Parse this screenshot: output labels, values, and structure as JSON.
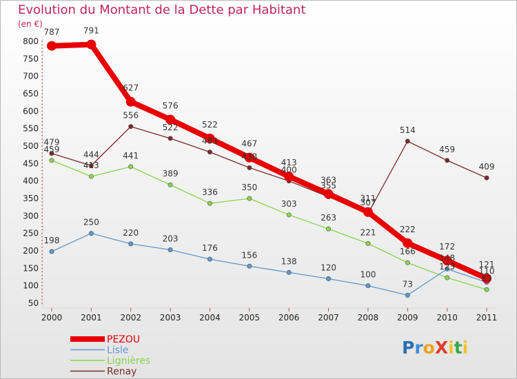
{
  "header": {
    "title": "Evolution du Montant de la Dette par Habitant",
    "unit": "(en €)"
  },
  "logo": {
    "text": "ProXiti",
    "letters": [
      {
        "ch": "P",
        "color": "#2a6fb5"
      },
      {
        "ch": "r",
        "color": "#3a8bd8"
      },
      {
        "ch": "o",
        "color": "#f0a020"
      },
      {
        "ch": "X",
        "color": "#e23c2a"
      },
      {
        "ch": "i",
        "color": "#f3c22a"
      },
      {
        "ch": "t",
        "color": "#39a845"
      },
      {
        "ch": "i",
        "color": "#f3c22a"
      }
    ]
  },
  "chart_data": {
    "type": "line",
    "title": "Evolution du Montant de la Dette par Habitant",
    "subtitle": "(en €)",
    "xlabel": "",
    "ylabel": "",
    "x": [
      "2000",
      "2001",
      "2002",
      "2003",
      "2004",
      "2005",
      "2006",
      "2007",
      "2008",
      "2009",
      "2010",
      "2011"
    ],
    "ylim": [
      50,
      800
    ],
    "yticks": [
      50,
      100,
      150,
      200,
      250,
      300,
      350,
      400,
      450,
      500,
      550,
      600,
      650,
      700,
      750,
      800
    ],
    "grid": false,
    "legend": "bottom-left",
    "series": [
      {
        "name": "PEZOU",
        "color": "#e80000",
        "values": [
          787,
          791,
          627,
          576,
          522,
          467,
          413,
          363,
          311,
          222,
          172,
          121
        ]
      },
      {
        "name": "Lisle",
        "color": "#5b98cc",
        "values": [
          198,
          250,
          220,
          203,
          176,
          156,
          138,
          120,
          100,
          73,
          148,
          110
        ]
      },
      {
        "name": "Lignières",
        "color": "#86d44c",
        "values": [
          459,
          413,
          441,
          389,
          336,
          350,
          303,
          263,
          221,
          166,
          123,
          89
        ]
      },
      {
        "name": "Renay",
        "color": "#7a2a2a",
        "values": [
          479,
          444,
          556,
          522,
          483,
          438,
          400,
          355,
          307,
          514,
          459,
          409
        ]
      }
    ],
    "data_labels": [
      {
        "series": "PEZOU",
        "labels": [
          "787",
          "791",
          "627",
          "576",
          "522",
          "467",
          "413",
          "363",
          "311",
          "222",
          "172",
          "121"
        ]
      },
      {
        "series": "Lisle",
        "labels": [
          "198",
          "250",
          "220",
          "203",
          "176",
          "156",
          "138",
          "120",
          "100",
          "73",
          "148",
          "110"
        ]
      },
      {
        "series": "Lignières",
        "labels": [
          "459",
          "413",
          "441",
          "389",
          "336",
          "350",
          "303",
          "263",
          "221",
          "166",
          "123",
          "89"
        ]
      },
      {
        "series": "Renay",
        "labels": [
          "479",
          "444",
          "556",
          "522",
          "483",
          "438",
          "400",
          "355",
          "307",
          "514",
          "459",
          "409"
        ]
      }
    ]
  }
}
